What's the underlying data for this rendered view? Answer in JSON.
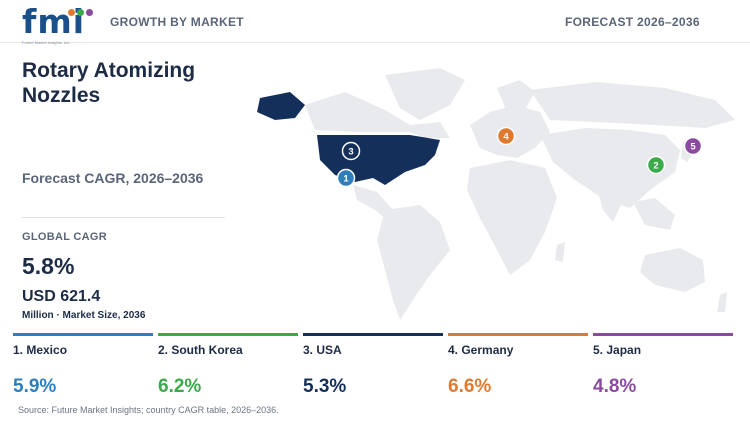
{
  "header": {
    "logo_text": "fmi",
    "logo_tagline": "Future Market Insights, Inc.",
    "title": "GROWTH BY MARKET",
    "range": "FORECAST 2026–2036"
  },
  "summary": {
    "title": "Rotary Atomizing Nozzles",
    "subtitle": "Forecast CAGR, 2026–2036",
    "global_label": "GLOBAL CAGR",
    "global_value": "5.8%",
    "market_value": "USD 621.4",
    "market_note": "Million · Market Size, 2036"
  },
  "map": {
    "land_color": "#e8eaed",
    "highlight_color": "#14305a",
    "markers": [
      {
        "rank": "1",
        "country": "Mexico",
        "color": "#2f7ebc"
      },
      {
        "rank": "2",
        "country": "South Korea",
        "color": "#3aaa4a"
      },
      {
        "rank": "3",
        "country": "USA",
        "color": "#14305a"
      },
      {
        "rank": "4",
        "country": "Germany",
        "color": "#e07a2f"
      },
      {
        "rank": "5",
        "country": "Japan",
        "color": "#8a4a9e"
      }
    ]
  },
  "countries": [
    {
      "label": "1. Mexico",
      "value": "5.9%",
      "color": "#2f7ebc"
    },
    {
      "label": "2. South Korea",
      "value": "6.2%",
      "color": "#3aaa4a"
    },
    {
      "label": "3. USA",
      "value": "5.3%",
      "color": "#14305a"
    },
    {
      "label": "4. Germany",
      "value": "6.6%",
      "color": "#e07a2f"
    },
    {
      "label": "5. Japan",
      "value": "4.8%",
      "color": "#8a4a9e"
    }
  ],
  "source": "Source: Future Market Insights; country CAGR table, 2026–2036."
}
